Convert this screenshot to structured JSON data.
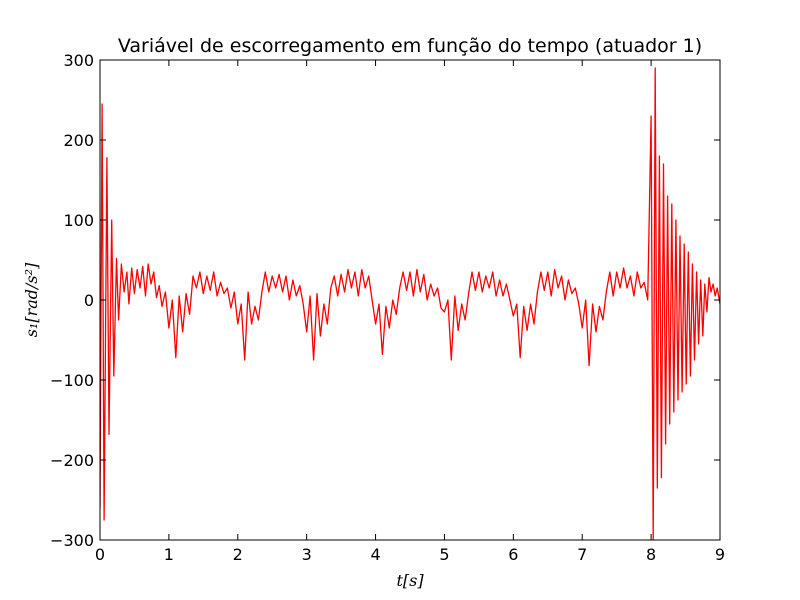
{
  "chart_data": {
    "type": "line",
    "title": "Variável de escorregamento em função do tempo (atuador 1)",
    "xlabel": "t[s]",
    "ylabel": "s₁[rad/s²]",
    "xlim": [
      0,
      9
    ],
    "ylim": [
      -300,
      300
    ],
    "xticks": [
      0,
      1,
      2,
      3,
      4,
      5,
      6,
      7,
      8,
      9
    ],
    "yticks": [
      -300,
      -200,
      -100,
      0,
      100,
      200,
      300
    ],
    "xtick_labels": [
      "0",
      "1",
      "2",
      "3",
      "4",
      "5",
      "6",
      "7",
      "8",
      "9"
    ],
    "ytick_labels": [
      "−300",
      "−200",
      "−100",
      "0",
      "100",
      "200",
      "300"
    ],
    "grid": false,
    "series": [
      {
        "color": "#ff0000",
        "x": [
          0.0,
          0.03,
          0.06,
          0.1,
          0.13,
          0.17,
          0.2,
          0.24,
          0.27,
          0.31,
          0.35,
          0.39,
          0.42,
          0.46,
          0.5,
          0.54,
          0.58,
          0.62,
          0.66,
          0.7,
          0.74,
          0.78,
          0.82,
          0.86,
          0.9,
          0.95,
          1.0,
          1.05,
          1.1,
          1.15,
          1.2,
          1.25,
          1.3,
          1.35,
          1.4,
          1.45,
          1.5,
          1.55,
          1.6,
          1.65,
          1.7,
          1.75,
          1.8,
          1.85,
          1.9,
          1.95,
          2.0,
          2.05,
          2.1,
          2.15,
          2.2,
          2.25,
          2.3,
          2.35,
          2.4,
          2.45,
          2.5,
          2.55,
          2.6,
          2.65,
          2.7,
          2.75,
          2.8,
          2.85,
          2.9,
          2.95,
          3.0,
          3.05,
          3.1,
          3.15,
          3.2,
          3.25,
          3.3,
          3.35,
          3.4,
          3.45,
          3.5,
          3.55,
          3.6,
          3.65,
          3.7,
          3.75,
          3.8,
          3.85,
          3.9,
          3.95,
          4.0,
          4.05,
          4.1,
          4.15,
          4.2,
          4.25,
          4.3,
          4.35,
          4.4,
          4.45,
          4.5,
          4.55,
          4.6,
          4.65,
          4.7,
          4.75,
          4.8,
          4.85,
          4.9,
          4.95,
          5.0,
          5.05,
          5.1,
          5.15,
          5.2,
          5.25,
          5.3,
          5.35,
          5.4,
          5.45,
          5.5,
          5.55,
          5.6,
          5.65,
          5.7,
          5.75,
          5.8,
          5.85,
          5.9,
          5.95,
          6.0,
          6.05,
          6.1,
          6.15,
          6.2,
          6.25,
          6.3,
          6.35,
          6.4,
          6.45,
          6.5,
          6.55,
          6.6,
          6.65,
          6.7,
          6.75,
          6.8,
          6.85,
          6.9,
          6.95,
          7.0,
          7.05,
          7.1,
          7.15,
          7.2,
          7.25,
          7.3,
          7.35,
          7.4,
          7.45,
          7.5,
          7.55,
          7.6,
          7.65,
          7.7,
          7.75,
          7.8,
          7.85,
          7.9,
          7.95,
          8.0,
          8.03,
          8.06,
          8.09,
          8.12,
          8.15,
          8.18,
          8.21,
          8.24,
          8.27,
          8.3,
          8.33,
          8.36,
          8.39,
          8.42,
          8.45,
          8.48,
          8.51,
          8.54,
          8.57,
          8.6,
          8.63,
          8.66,
          8.69,
          8.72,
          8.75,
          8.78,
          8.81,
          8.84,
          8.87,
          8.9,
          8.93,
          8.96,
          9.0
        ],
        "y": [
          -260,
          245,
          -275,
          178,
          -168,
          100,
          -95,
          52,
          -25,
          45,
          10,
          35,
          -5,
          40,
          8,
          38,
          15,
          42,
          5,
          45,
          20,
          35,
          3,
          18,
          -8,
          10,
          -35,
          0,
          -72,
          5,
          -40,
          8,
          -18,
          30,
          15,
          35,
          8,
          30,
          12,
          35,
          5,
          22,
          8,
          15,
          -10,
          10,
          -30,
          -5,
          -75,
          10,
          -30,
          -8,
          -25,
          10,
          35,
          10,
          30,
          15,
          32,
          10,
          30,
          0,
          25,
          5,
          18,
          -5,
          -40,
          5,
          -75,
          8,
          -45,
          -5,
          -30,
          15,
          30,
          5,
          32,
          10,
          38,
          15,
          35,
          5,
          38,
          15,
          30,
          0,
          -30,
          -5,
          -68,
          -8,
          -35,
          0,
          -18,
          15,
          35,
          12,
          35,
          5,
          38,
          10,
          32,
          0,
          20,
          5,
          15,
          -10,
          -15,
          0,
          -75,
          5,
          -38,
          -5,
          -25,
          8,
          35,
          12,
          35,
          10,
          30,
          15,
          35,
          5,
          25,
          5,
          20,
          0,
          -20,
          -5,
          -72,
          -8,
          -38,
          -5,
          -30,
          10,
          35,
          12,
          35,
          5,
          38,
          15,
          30,
          0,
          25,
          8,
          15,
          -5,
          -35,
          0,
          -82,
          -5,
          -40,
          -8,
          -25,
          10,
          35,
          5,
          35,
          15,
          40,
          15,
          30,
          5,
          35,
          15,
          22,
          0,
          230,
          -300,
          290,
          -235,
          180,
          -222,
          170,
          -180,
          130,
          -155,
          120,
          -140,
          100,
          -125,
          80,
          -115,
          70,
          -105,
          60,
          -95,
          45,
          -75,
          35,
          -55,
          25,
          -45,
          20,
          -15,
          28,
          10,
          20,
          5,
          15,
          -5
        ]
      }
    ]
  }
}
